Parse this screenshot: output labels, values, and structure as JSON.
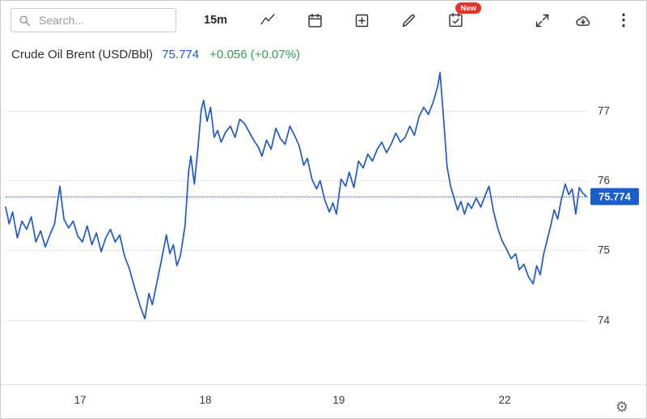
{
  "toolbar": {
    "search_placeholder": "Search...",
    "interval_label": "15m",
    "new_badge": "New"
  },
  "icons": {
    "more": "⋮",
    "settings": "⚙"
  },
  "header": {
    "symbol": "Crude Oil Brent (USD/Bbl)",
    "price": "75.774",
    "change": "+0.056 (+0.07%)"
  },
  "axis": {
    "price_tag": "75.774"
  },
  "colors": {
    "line_blue": "#1e59c5",
    "price_blue": "#1a5cc8",
    "change_green": "#2e9e4f",
    "badge_red": "#e5342d",
    "tag_blue": "#1b5ec9"
  },
  "chart_data": {
    "type": "line",
    "title": "Crude Oil Brent (USD/Bbl)",
    "interval": "15m",
    "last_price": 75.774,
    "change": "+0.056 (+0.07%)",
    "xlabel": "",
    "ylabel": "",
    "grid": "horizontal",
    "legend": "none",
    "ylim": [
      73.15,
      77.65
    ],
    "y_ticks": [
      74,
      75,
      76,
      77
    ],
    "x_tick_labels": [
      "17",
      "18",
      "19",
      "22"
    ],
    "x_tick_pos": [
      0.128,
      0.343,
      0.572,
      0.857
    ],
    "line_color": "#1e59c5",
    "points": [
      [
        0.0,
        75.62
      ],
      [
        0.006,
        75.38
      ],
      [
        0.012,
        75.55
      ],
      [
        0.02,
        75.18
      ],
      [
        0.028,
        75.42
      ],
      [
        0.036,
        75.3
      ],
      [
        0.044,
        75.48
      ],
      [
        0.052,
        75.12
      ],
      [
        0.06,
        75.28
      ],
      [
        0.068,
        75.05
      ],
      [
        0.076,
        75.22
      ],
      [
        0.084,
        75.38
      ],
      [
        0.093,
        75.92
      ],
      [
        0.1,
        75.45
      ],
      [
        0.108,
        75.32
      ],
      [
        0.116,
        75.42
      ],
      [
        0.124,
        75.2
      ],
      [
        0.132,
        75.12
      ],
      [
        0.14,
        75.35
      ],
      [
        0.148,
        75.08
      ],
      [
        0.156,
        75.25
      ],
      [
        0.164,
        74.98
      ],
      [
        0.172,
        75.18
      ],
      [
        0.18,
        75.3
      ],
      [
        0.188,
        75.12
      ],
      [
        0.196,
        75.22
      ],
      [
        0.204,
        74.92
      ],
      [
        0.212,
        74.75
      ],
      [
        0.222,
        74.45
      ],
      [
        0.232,
        74.18
      ],
      [
        0.239,
        74.02
      ],
      [
        0.246,
        74.38
      ],
      [
        0.252,
        74.22
      ],
      [
        0.26,
        74.55
      ],
      [
        0.268,
        74.88
      ],
      [
        0.276,
        75.22
      ],
      [
        0.282,
        74.95
      ],
      [
        0.288,
        75.08
      ],
      [
        0.294,
        74.78
      ],
      [
        0.3,
        74.92
      ],
      [
        0.308,
        75.35
      ],
      [
        0.314,
        76.12
      ],
      [
        0.318,
        76.35
      ],
      [
        0.324,
        75.95
      ],
      [
        0.33,
        76.45
      ],
      [
        0.336,
        77.02
      ],
      [
        0.34,
        77.15
      ],
      [
        0.346,
        76.85
      ],
      [
        0.352,
        77.05
      ],
      [
        0.358,
        76.62
      ],
      [
        0.364,
        76.72
      ],
      [
        0.37,
        76.55
      ],
      [
        0.378,
        76.7
      ],
      [
        0.386,
        76.78
      ],
      [
        0.394,
        76.62
      ],
      [
        0.402,
        76.88
      ],
      [
        0.41,
        76.82
      ],
      [
        0.418,
        76.7
      ],
      [
        0.426,
        76.58
      ],
      [
        0.434,
        76.48
      ],
      [
        0.44,
        76.35
      ],
      [
        0.448,
        76.58
      ],
      [
        0.456,
        76.45
      ],
      [
        0.464,
        76.75
      ],
      [
        0.472,
        76.6
      ],
      [
        0.48,
        76.52
      ],
      [
        0.488,
        76.78
      ],
      [
        0.496,
        76.65
      ],
      [
        0.504,
        76.5
      ],
      [
        0.512,
        76.22
      ],
      [
        0.518,
        76.32
      ],
      [
        0.526,
        76.02
      ],
      [
        0.534,
        75.88
      ],
      [
        0.54,
        76.0
      ],
      [
        0.548,
        75.72
      ],
      [
        0.556,
        75.55
      ],
      [
        0.562,
        75.68
      ],
      [
        0.568,
        75.52
      ],
      [
        0.576,
        76.02
      ],
      [
        0.584,
        75.92
      ],
      [
        0.59,
        76.12
      ],
      [
        0.598,
        75.9
      ],
      [
        0.606,
        76.28
      ],
      [
        0.614,
        76.18
      ],
      [
        0.622,
        76.38
      ],
      [
        0.63,
        76.28
      ],
      [
        0.638,
        76.45
      ],
      [
        0.646,
        76.55
      ],
      [
        0.654,
        76.4
      ],
      [
        0.662,
        76.52
      ],
      [
        0.67,
        76.68
      ],
      [
        0.678,
        76.55
      ],
      [
        0.686,
        76.62
      ],
      [
        0.694,
        76.78
      ],
      [
        0.702,
        76.65
      ],
      [
        0.71,
        76.92
      ],
      [
        0.718,
        77.05
      ],
      [
        0.726,
        76.95
      ],
      [
        0.734,
        77.12
      ],
      [
        0.742,
        77.35
      ],
      [
        0.746,
        77.55
      ],
      [
        0.752,
        76.9
      ],
      [
        0.758,
        76.2
      ],
      [
        0.764,
        75.92
      ],
      [
        0.77,
        75.75
      ],
      [
        0.776,
        75.58
      ],
      [
        0.782,
        75.7
      ],
      [
        0.788,
        75.52
      ],
      [
        0.794,
        75.68
      ],
      [
        0.8,
        75.6
      ],
      [
        0.808,
        75.75
      ],
      [
        0.816,
        75.62
      ],
      [
        0.824,
        75.8
      ],
      [
        0.83,
        75.92
      ],
      [
        0.838,
        75.55
      ],
      [
        0.845,
        75.32
      ],
      [
        0.852,
        75.15
      ],
      [
        0.86,
        75.02
      ],
      [
        0.868,
        74.88
      ],
      [
        0.876,
        74.95
      ],
      [
        0.882,
        74.72
      ],
      [
        0.89,
        74.8
      ],
      [
        0.898,
        74.62
      ],
      [
        0.906,
        74.52
      ],
      [
        0.912,
        74.78
      ],
      [
        0.918,
        74.65
      ],
      [
        0.924,
        74.95
      ],
      [
        0.93,
        75.15
      ],
      [
        0.936,
        75.35
      ],
      [
        0.942,
        75.58
      ],
      [
        0.948,
        75.45
      ],
      [
        0.954,
        75.72
      ],
      [
        0.961,
        75.95
      ],
      [
        0.967,
        75.8
      ],
      [
        0.973,
        75.88
      ],
      [
        0.979,
        75.52
      ],
      [
        0.985,
        75.9
      ],
      [
        0.991,
        75.82
      ],
      [
        0.997,
        75.774
      ]
    ]
  }
}
